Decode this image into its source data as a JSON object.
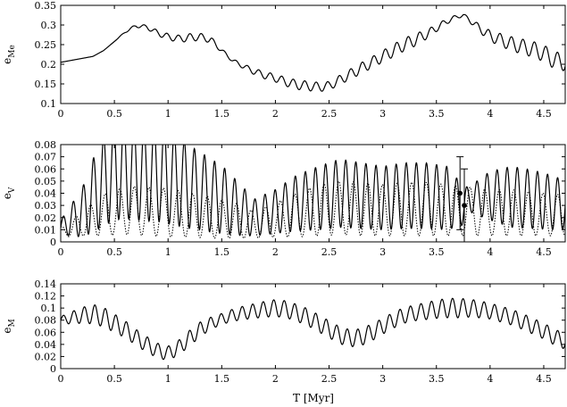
{
  "chart_data": [
    {
      "type": "line",
      "ylabel_base": "e",
      "ylabel_sub": "Me",
      "xlim": [
        0,
        4.7
      ],
      "ylim": [
        0.1,
        0.35
      ],
      "xticks": [
        "0",
        "0.5",
        "1",
        "1.5",
        "2",
        "2.5",
        "3",
        "3.5",
        "4",
        "4.5"
      ],
      "yticks": [
        "0.1",
        "0.15",
        "0.2",
        "0.25",
        "0.3",
        "0.35"
      ],
      "series": [
        {
          "style": "solid",
          "x": [
            0,
            0.1,
            0.2,
            0.3,
            0.4,
            0.5,
            0.6,
            0.7,
            0.8,
            0.9,
            1.0,
            1.1,
            1.2,
            1.3,
            1.4,
            1.5,
            1.6,
            1.7,
            1.8,
            1.9,
            2.0,
            2.1,
            2.2,
            2.3,
            2.4,
            2.5,
            2.6,
            2.7,
            2.8,
            2.9,
            3.0,
            3.1,
            3.2,
            3.3,
            3.4,
            3.5,
            3.6,
            3.7,
            3.75,
            3.8,
            3.9,
            4.0,
            4.1,
            4.2,
            4.3,
            4.4,
            4.5,
            4.6,
            4.7
          ],
          "y": [
            0.205,
            0.21,
            0.215,
            0.22,
            0.235,
            0.258,
            0.282,
            0.298,
            0.295,
            0.28,
            0.27,
            0.265,
            0.268,
            0.27,
            0.262,
            0.235,
            0.21,
            0.195,
            0.182,
            0.172,
            0.165,
            0.155,
            0.148,
            0.145,
            0.142,
            0.145,
            0.16,
            0.175,
            0.19,
            0.205,
            0.22,
            0.235,
            0.25,
            0.262,
            0.275,
            0.292,
            0.31,
            0.322,
            0.325,
            0.315,
            0.292,
            0.272,
            0.262,
            0.252,
            0.245,
            0.238,
            0.228,
            0.21,
            0.205
          ],
          "oscillation_amplitude": [
            0.0,
            0.0,
            0.0,
            0.0,
            0.0,
            0.0,
            0.002,
            0.004,
            0.005,
            0.007,
            0.008,
            0.009,
            0.01,
            0.009,
            0.008,
            0.005,
            0.004,
            0.006,
            0.008,
            0.009,
            0.01,
            0.011,
            0.012,
            0.012,
            0.012,
            0.011,
            0.012,
            0.013,
            0.014,
            0.014,
            0.015,
            0.016,
            0.016,
            0.016,
            0.012,
            0.009,
            0.007,
            0.005,
            0.004,
            0.006,
            0.01,
            0.014,
            0.016,
            0.018,
            0.019,
            0.02,
            0.021,
            0.022,
            0.022
          ]
        }
      ]
    },
    {
      "type": "line",
      "ylabel_base": "e",
      "ylabel_sub": "V",
      "xlim": [
        0,
        4.7
      ],
      "ylim": [
        0,
        0.08
      ],
      "xticks": [
        "0",
        "0.5",
        "1",
        "1.5",
        "2",
        "2.5",
        "3",
        "3.5",
        "4",
        "4.5"
      ],
      "yticks": [
        "0",
        "0.01",
        "0.02",
        "0.03",
        "0.04",
        "0.05",
        "0.06",
        "0.07",
        "0.08"
      ],
      "series": [
        {
          "style": "solid",
          "x": [
            0,
            0.2,
            0.3,
            0.4,
            0.5,
            0.6,
            0.7,
            0.8,
            0.9,
            1.0,
            1.1,
            1.2,
            1.3,
            1.4,
            1.5,
            1.6,
            1.7,
            1.8,
            2.0,
            2.2,
            2.4,
            2.6,
            2.8,
            3.0,
            3.2,
            3.4,
            3.6,
            3.75,
            3.8,
            4.0,
            4.2,
            4.4,
            4.6,
            4.7
          ],
          "y": [
            0.012,
            0.024,
            0.038,
            0.05,
            0.058,
            0.06,
            0.058,
            0.056,
            0.057,
            0.055,
            0.05,
            0.045,
            0.042,
            0.038,
            0.035,
            0.03,
            0.025,
            0.02,
            0.025,
            0.032,
            0.036,
            0.04,
            0.038,
            0.036,
            0.038,
            0.038,
            0.036,
            0.03,
            0.035,
            0.038,
            0.037,
            0.035,
            0.032,
            0.03
          ],
          "oscillation_amplitude": [
            0.006,
            0.02,
            0.03,
            0.037,
            0.04,
            0.041,
            0.04,
            0.039,
            0.04,
            0.04,
            0.037,
            0.034,
            0.032,
            0.03,
            0.028,
            0.024,
            0.02,
            0.015,
            0.018,
            0.023,
            0.026,
            0.028,
            0.027,
            0.026,
            0.027,
            0.027,
            0.026,
            0.016,
            0.01,
            0.02,
            0.025,
            0.024,
            0.022,
            0.02
          ]
        },
        {
          "style": "dotted",
          "x": [
            0,
            0.2,
            0.4,
            0.6,
            0.8,
            1.0,
            1.2,
            1.4,
            1.6,
            1.8,
            2.0,
            2.2,
            2.4,
            2.6,
            2.8,
            3.0,
            3.2,
            3.4,
            3.6,
            3.8,
            4.0,
            4.2,
            4.4,
            4.6,
            4.7
          ],
          "y": [
            0.008,
            0.015,
            0.022,
            0.026,
            0.025,
            0.024,
            0.022,
            0.02,
            0.018,
            0.014,
            0.018,
            0.022,
            0.026,
            0.028,
            0.027,
            0.026,
            0.027,
            0.027,
            0.026,
            0.025,
            0.024,
            0.024,
            0.023,
            0.022,
            0.022
          ],
          "oscillation_amplitude": [
            0.004,
            0.01,
            0.017,
            0.02,
            0.02,
            0.02,
            0.018,
            0.017,
            0.015,
            0.011,
            0.014,
            0.018,
            0.021,
            0.022,
            0.022,
            0.021,
            0.022,
            0.022,
            0.021,
            0.02,
            0.019,
            0.019,
            0.018,
            0.017,
            0.017
          ]
        }
      ],
      "points": [
        {
          "x": 3.72,
          "y": 0.04,
          "err_low": 0.03,
          "err_high": 0.03
        },
        {
          "x": 3.76,
          "y": 0.03,
          "err_low": 0.03,
          "err_high": 0.03
        }
      ]
    },
    {
      "type": "line",
      "ylabel_base": "e",
      "ylabel_sub": "M",
      "xlabel": "T [Myr]",
      "xlim": [
        0,
        4.7
      ],
      "ylim": [
        0,
        0.14
      ],
      "xticks": [
        "0",
        "0.5",
        "1",
        "1.5",
        "2",
        "2.5",
        "3",
        "3.5",
        "4",
        "4.5"
      ],
      "yticks": [
        "0",
        "0.02",
        "0.04",
        "0.06",
        "0.08",
        "0.1",
        "0.12",
        "0.14"
      ],
      "series": [
        {
          "style": "solid",
          "x": [
            0,
            0.1,
            0.2,
            0.3,
            0.4,
            0.5,
            0.6,
            0.7,
            0.8,
            0.9,
            1.0,
            1.1,
            1.2,
            1.3,
            1.4,
            1.5,
            1.6,
            1.7,
            1.8,
            1.9,
            2.0,
            2.1,
            2.2,
            2.3,
            2.4,
            2.5,
            2.6,
            2.7,
            2.8,
            2.9,
            3.0,
            3.1,
            3.2,
            3.3,
            3.4,
            3.5,
            3.6,
            3.7,
            3.8,
            3.9,
            4.0,
            4.1,
            4.2,
            4.3,
            4.4,
            4.5,
            4.6,
            4.7
          ],
          "y": [
            0.08,
            0.084,
            0.088,
            0.09,
            0.085,
            0.075,
            0.065,
            0.052,
            0.04,
            0.03,
            0.025,
            0.035,
            0.05,
            0.065,
            0.075,
            0.082,
            0.088,
            0.092,
            0.095,
            0.098,
            0.1,
            0.098,
            0.092,
            0.085,
            0.075,
            0.065,
            0.055,
            0.05,
            0.052,
            0.06,
            0.07,
            0.08,
            0.088,
            0.092,
            0.095,
            0.098,
            0.1,
            0.1,
            0.1,
            0.098,
            0.095,
            0.09,
            0.085,
            0.078,
            0.07,
            0.062,
            0.052,
            0.045
          ],
          "oscillation_amplitude": [
            0.006,
            0.01,
            0.013,
            0.016,
            0.016,
            0.015,
            0.014,
            0.013,
            0.013,
            0.012,
            0.012,
            0.012,
            0.013,
            0.012,
            0.01,
            0.009,
            0.01,
            0.011,
            0.012,
            0.013,
            0.014,
            0.014,
            0.014,
            0.014,
            0.014,
            0.014,
            0.014,
            0.014,
            0.014,
            0.014,
            0.013,
            0.013,
            0.013,
            0.013,
            0.014,
            0.015,
            0.016,
            0.016,
            0.015,
            0.014,
            0.013,
            0.013,
            0.013,
            0.013,
            0.013,
            0.013,
            0.013,
            0.013
          ]
        }
      ]
    }
  ]
}
